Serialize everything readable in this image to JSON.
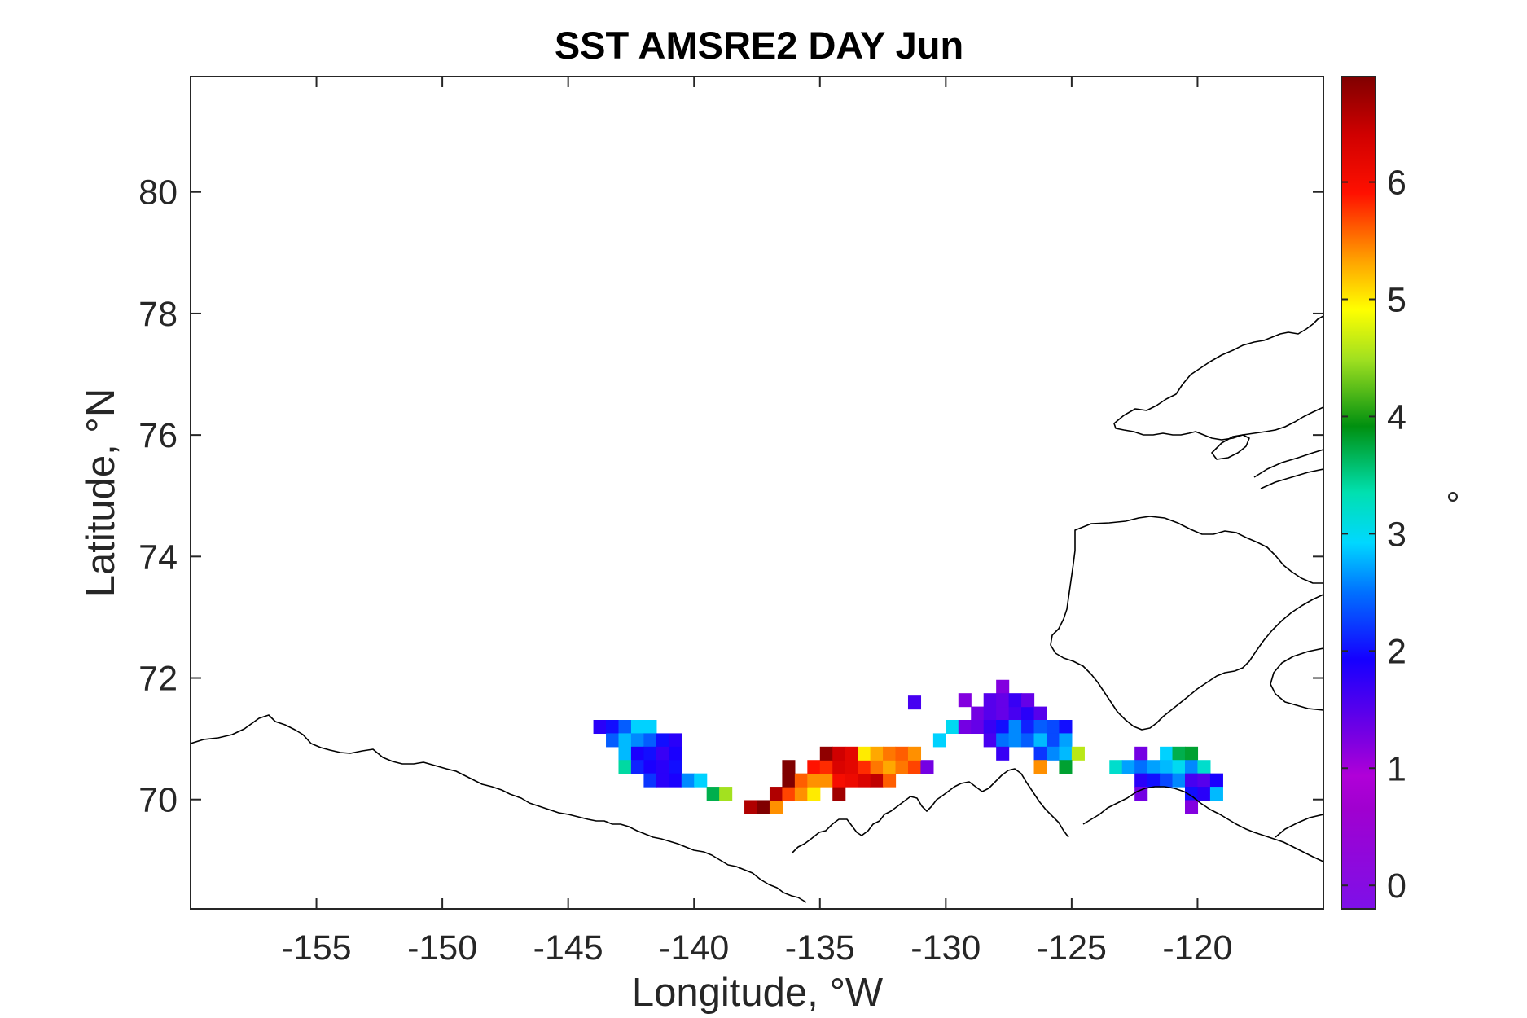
{
  "chart_data": {
    "type": "heatmap",
    "title": "SST AMSRE2 DAY Jun",
    "xlabel": "Longitude, °W",
    "ylabel": "Latitude, °N",
    "colorbar_label": "°",
    "xlim": [
      -160,
      -115
    ],
    "ylim": [
      68.2,
      81.9
    ],
    "xticks": [
      -155,
      -150,
      -145,
      -140,
      -135,
      -130,
      -125,
      -120
    ],
    "xtick_labels": [
      "-155",
      "-150",
      "-145",
      "-140",
      "-135",
      "-130",
      "-125",
      "-120"
    ],
    "yticks": [
      70,
      72,
      74,
      76,
      78,
      80
    ],
    "ytick_labels": [
      "70",
      "72",
      "74",
      "76",
      "78",
      "80"
    ],
    "clim": [
      -0.2,
      6.9
    ],
    "cticks": [
      0,
      1,
      2,
      3,
      4,
      5,
      6
    ],
    "ctick_labels": [
      "0",
      "1",
      "2",
      "3",
      "4",
      "5",
      "6"
    ],
    "colormap": "jet-like (purple-blue-cyan-green-yellow-red-dark red)",
    "cell_size": {
      "lon": 0.5,
      "lat": 0.22
    },
    "grid": false,
    "coastline_color": "#000000",
    "cells": [
      [
        -143.75,
        71.2,
        1.8
      ],
      [
        -143.25,
        71.2,
        2.0
      ],
      [
        -142.75,
        71.2,
        2.4
      ],
      [
        -142.25,
        71.2,
        2.9
      ],
      [
        -141.75,
        71.2,
        2.9
      ],
      [
        -143.25,
        70.98,
        2.4
      ],
      [
        -142.75,
        70.98,
        2.8
      ],
      [
        -142.25,
        70.98,
        2.6
      ],
      [
        -141.75,
        70.98,
        2.4
      ],
      [
        -141.25,
        70.98,
        2.0
      ],
      [
        -140.75,
        70.98,
        1.8
      ],
      [
        -142.75,
        70.76,
        2.8
      ],
      [
        -142.25,
        70.76,
        1.9
      ],
      [
        -141.75,
        70.76,
        2.0
      ],
      [
        -141.25,
        70.76,
        1.7
      ],
      [
        -140.75,
        70.76,
        1.9
      ],
      [
        -142.75,
        70.54,
        3.4
      ],
      [
        -142.25,
        70.54,
        2.1
      ],
      [
        -141.75,
        70.54,
        1.9
      ],
      [
        -141.25,
        70.54,
        1.8
      ],
      [
        -140.75,
        70.54,
        2.0
      ],
      [
        -141.75,
        70.32,
        2.2
      ],
      [
        -141.25,
        70.32,
        1.8
      ],
      [
        -140.75,
        70.32,
        1.9
      ],
      [
        -140.25,
        70.32,
        2.6
      ],
      [
        -139.75,
        70.32,
        2.9
      ],
      [
        -139.25,
        70.1,
        3.7
      ],
      [
        -138.75,
        70.1,
        4.5
      ],
      [
        -137.75,
        69.88,
        6.6
      ],
      [
        -137.25,
        69.88,
        6.9
      ],
      [
        -136.75,
        69.88,
        5.4
      ],
      [
        -136.75,
        70.1,
        6.6
      ],
      [
        -136.25,
        70.1,
        5.7
      ],
      [
        -135.75,
        70.1,
        5.4
      ],
      [
        -135.25,
        70.1,
        5.0
      ],
      [
        -134.25,
        70.1,
        6.7
      ],
      [
        -136.25,
        70.32,
        6.9
      ],
      [
        -135.75,
        70.32,
        5.6
      ],
      [
        -135.25,
        70.32,
        5.4
      ],
      [
        -134.75,
        70.32,
        5.4
      ],
      [
        -134.25,
        70.32,
        6.0
      ],
      [
        -133.75,
        70.32,
        6.1
      ],
      [
        -133.25,
        70.32,
        6.3
      ],
      [
        -132.75,
        70.32,
        6.5
      ],
      [
        -132.25,
        70.32,
        5.6
      ],
      [
        -136.25,
        70.54,
        6.9
      ],
      [
        -135.25,
        70.54,
        5.9
      ],
      [
        -134.75,
        70.54,
        5.8
      ],
      [
        -134.25,
        70.54,
        6.3
      ],
      [
        -133.75,
        70.54,
        6.2
      ],
      [
        -133.25,
        70.54,
        5.8
      ],
      [
        -132.75,
        70.54,
        5.5
      ],
      [
        -132.25,
        70.54,
        5.3
      ],
      [
        -131.75,
        70.54,
        5.5
      ],
      [
        -131.25,
        70.54,
        5.7
      ],
      [
        -130.75,
        70.54,
        1.3
      ],
      [
        -134.75,
        70.76,
        6.8
      ],
      [
        -134.25,
        70.76,
        6.4
      ],
      [
        -133.75,
        70.76,
        6.2
      ],
      [
        -133.25,
        70.76,
        5.0
      ],
      [
        -132.75,
        70.76,
        5.3
      ],
      [
        -132.25,
        70.76,
        5.5
      ],
      [
        -131.75,
        70.76,
        5.6
      ],
      [
        -131.25,
        70.76,
        5.4
      ],
      [
        -131.25,
        71.6,
        1.6
      ],
      [
        -130.25,
        70.98,
        2.9
      ],
      [
        -129.75,
        71.2,
        3.0
      ],
      [
        -129.25,
        71.64,
        1.2
      ],
      [
        -127.75,
        71.86,
        1.2
      ],
      [
        -128.75,
        71.42,
        1.3
      ],
      [
        -128.25,
        71.42,
        1.5
      ],
      [
        -127.75,
        71.42,
        1.4
      ],
      [
        -127.25,
        71.42,
        1.6
      ],
      [
        -126.75,
        71.42,
        1.8
      ],
      [
        -126.25,
        71.42,
        1.5
      ],
      [
        -128.25,
        71.64,
        1.5
      ],
      [
        -127.75,
        71.64,
        1.4
      ],
      [
        -127.25,
        71.64,
        1.7
      ],
      [
        -126.75,
        71.64,
        1.4
      ],
      [
        -129.25,
        71.2,
        1.3
      ],
      [
        -128.75,
        71.2,
        1.4
      ],
      [
        -128.25,
        71.2,
        1.7
      ],
      [
        -127.75,
        71.2,
        2.0
      ],
      [
        -127.25,
        71.2,
        2.6
      ],
      [
        -126.75,
        71.2,
        2.1
      ],
      [
        -126.25,
        71.2,
        2.4
      ],
      [
        -125.75,
        71.2,
        2.3
      ],
      [
        -125.25,
        71.2,
        2.0
      ],
      [
        -128.25,
        70.98,
        1.6
      ],
      [
        -127.75,
        70.98,
        2.5
      ],
      [
        -127.25,
        70.98,
        2.6
      ],
      [
        -126.75,
        70.98,
        2.4
      ],
      [
        -126.25,
        70.98,
        2.8
      ],
      [
        -125.75,
        70.98,
        2.3
      ],
      [
        -125.25,
        70.98,
        2.7
      ],
      [
        -127.75,
        70.76,
        1.7
      ],
      [
        -126.25,
        70.76,
        2.2
      ],
      [
        -125.75,
        70.76,
        2.6
      ],
      [
        -125.25,
        70.76,
        2.8
      ],
      [
        -124.75,
        70.76,
        4.6
      ],
      [
        -126.25,
        70.54,
        5.4
      ],
      [
        -125.25,
        70.54,
        3.8
      ],
      [
        -123.25,
        70.54,
        3.2
      ],
      [
        -122.25,
        70.76,
        1.3
      ],
      [
        -121.25,
        70.76,
        2.9
      ],
      [
        -120.75,
        70.76,
        3.7
      ],
      [
        -120.25,
        70.76,
        3.8
      ],
      [
        -122.75,
        70.54,
        2.7
      ],
      [
        -122.25,
        70.54,
        2.5
      ],
      [
        -121.75,
        70.54,
        2.7
      ],
      [
        -121.25,
        70.54,
        2.8
      ],
      [
        -120.75,
        70.54,
        3.0
      ],
      [
        -120.25,
        70.54,
        2.6
      ],
      [
        -119.75,
        70.54,
        3.2
      ],
      [
        -122.25,
        70.32,
        1.8
      ],
      [
        -121.75,
        70.32,
        2.0
      ],
      [
        -121.25,
        70.32,
        2.3
      ],
      [
        -120.75,
        70.32,
        2.6
      ],
      [
        -120.25,
        70.32,
        1.6
      ],
      [
        -119.75,
        70.32,
        1.5
      ],
      [
        -119.25,
        70.32,
        1.9
      ],
      [
        -122.25,
        70.1,
        1.3
      ],
      [
        -120.25,
        70.1,
        2.0
      ],
      [
        -119.75,
        70.1,
        1.8
      ],
      [
        -119.25,
        70.1,
        2.8
      ],
      [
        -120.25,
        69.88,
        1.2
      ]
    ]
  }
}
